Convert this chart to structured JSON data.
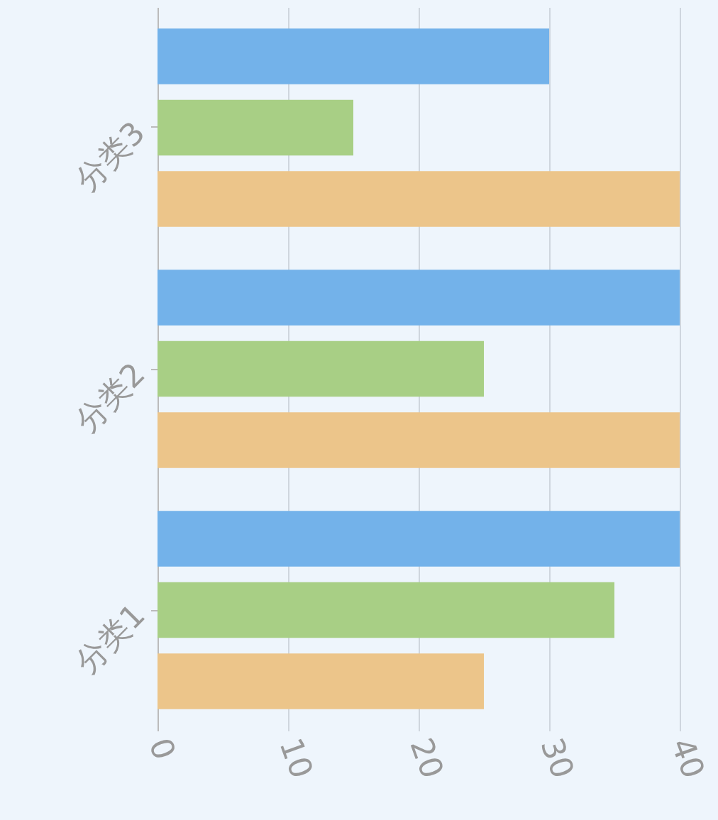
{
  "chart_data": {
    "type": "bar",
    "orientation": "horizontal",
    "categories": [
      "分类3",
      "分类2",
      "分类1"
    ],
    "series": [
      {
        "color": "#73b2ea",
        "values": [
          30,
          40,
          40
        ]
      },
      {
        "color": "#a8cf85",
        "values": [
          15,
          25,
          35
        ]
      },
      {
        "color": "#ecc58a",
        "values": [
          40,
          40,
          25
        ]
      }
    ],
    "xlim": [
      0,
      40
    ],
    "xticks": [
      0,
      10,
      20,
      30,
      40
    ],
    "grid": "x"
  }
}
